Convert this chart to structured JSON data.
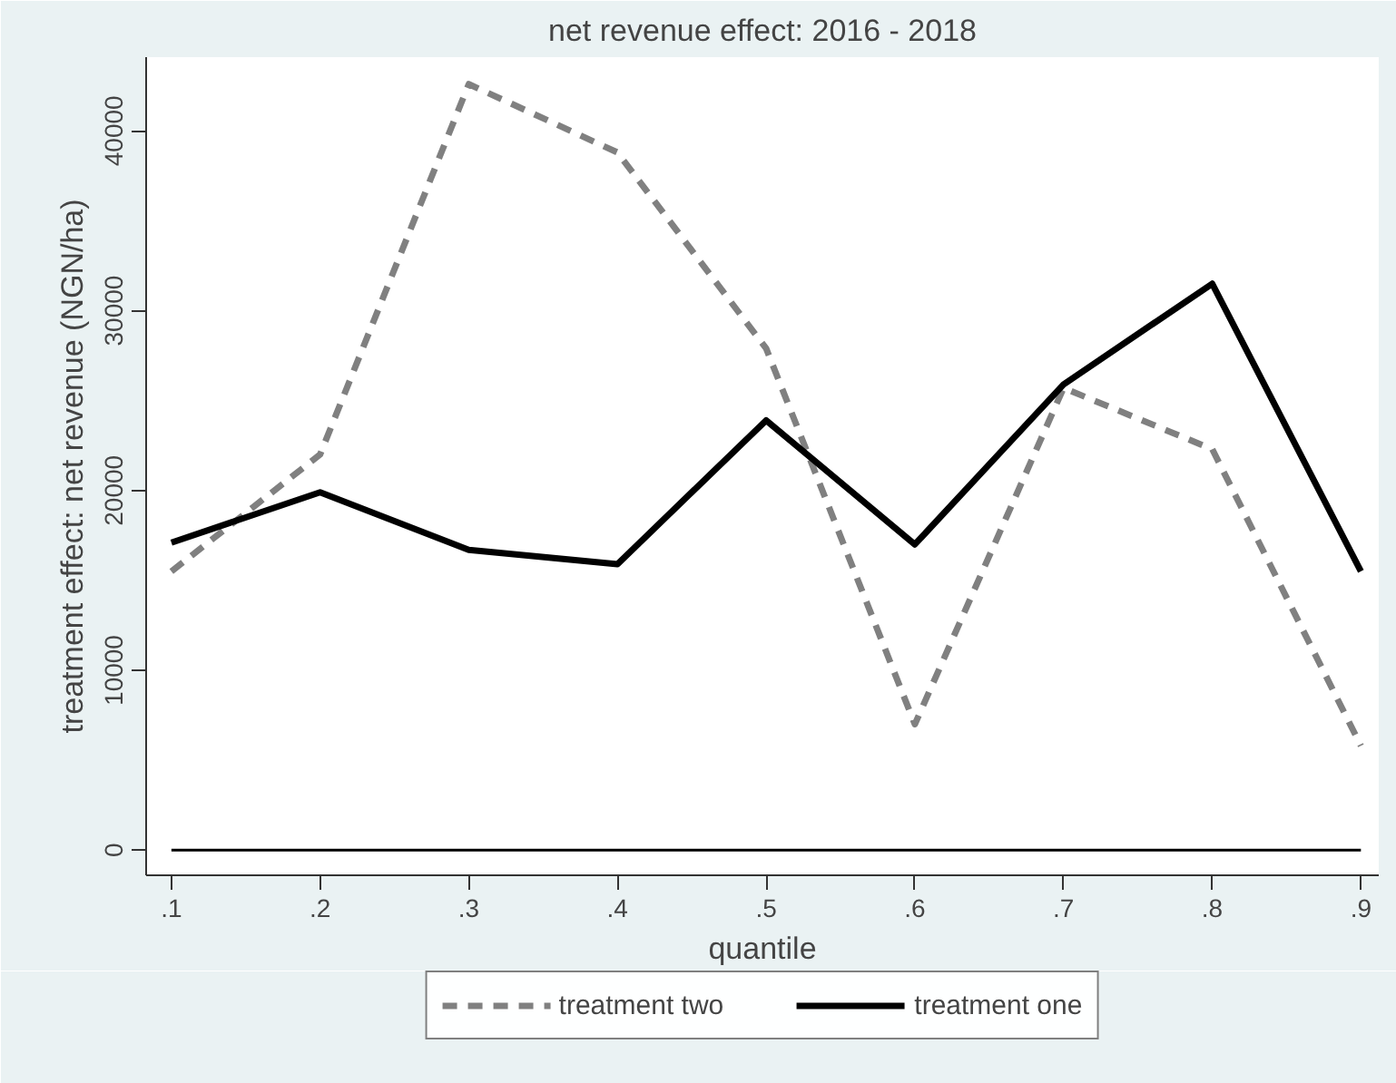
{
  "chart_data": {
    "type": "line",
    "title": "net revenue effect: 2016 - 2018",
    "xlabel": "quantile",
    "ylabel": "treatment effect: net revenue (NGN/ha)",
    "x": [
      0.1,
      0.2,
      0.3,
      0.4,
      0.5,
      0.6,
      0.7,
      0.8,
      0.9
    ],
    "series": [
      {
        "name": "treatment two",
        "color": "#808080",
        "line_style": "dashed",
        "values": [
          15500,
          22000,
          42600,
          38800,
          27900,
          7000,
          25700,
          22300,
          5800
        ]
      },
      {
        "name": "treatment one",
        "color": "#000000",
        "line_style": "solid",
        "values": [
          17100,
          19900,
          16700,
          15900,
          23900,
          17000,
          25900,
          31500,
          15500
        ]
      }
    ],
    "xlim": [
      0.083,
      0.912
    ],
    "ylim": [
      -1400,
      44100
    ],
    "xticks": [
      {
        "value": 0.1,
        "label": ".1"
      },
      {
        "value": 0.2,
        "label": ".2"
      },
      {
        "value": 0.3,
        "label": ".3"
      },
      {
        "value": 0.4,
        "label": ".4"
      },
      {
        "value": 0.5,
        "label": ".5"
      },
      {
        "value": 0.6,
        "label": ".6"
      },
      {
        "value": 0.7,
        "label": ".7"
      },
      {
        "value": 0.8,
        "label": ".8"
      },
      {
        "value": 0.9,
        "label": ".9"
      }
    ],
    "yticks": [
      0,
      10000,
      20000,
      30000,
      40000
    ],
    "ref_lines": [
      {
        "axis": "y",
        "value": 0,
        "color": "#000000"
      }
    ],
    "grid": false,
    "legend": "bottom",
    "marker": "none"
  }
}
